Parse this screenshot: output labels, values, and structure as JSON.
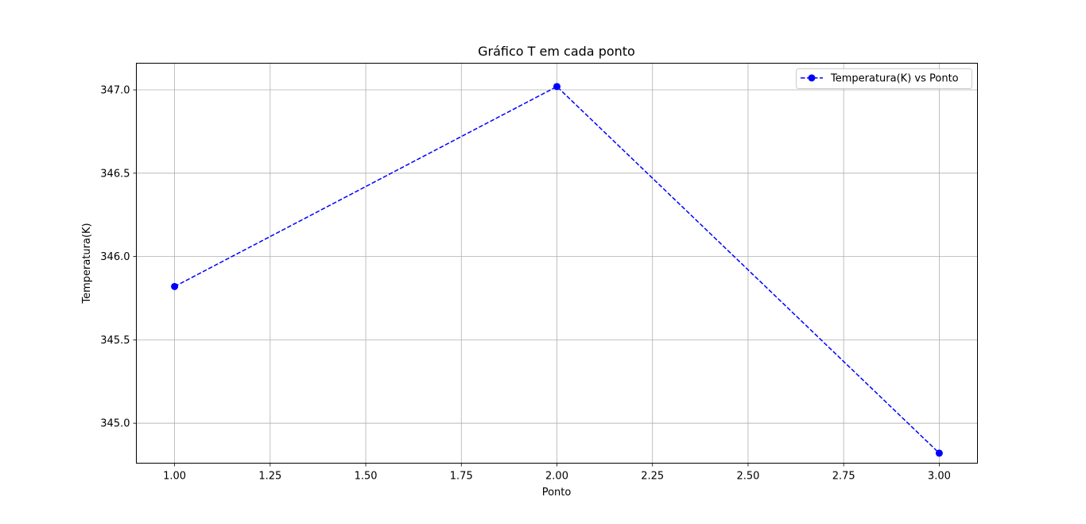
{
  "chart_data": {
    "type": "line",
    "title": "Gráfico T em cada ponto",
    "xlabel": "Ponto",
    "ylabel": "Temperatura(K)",
    "xlim": [
      0.9,
      3.1
    ],
    "ylim": [
      344.76,
      347.16
    ],
    "grid": true,
    "legend_placement": "top-right",
    "x_ticks": [
      "1.00",
      "1.25",
      "1.50",
      "1.75",
      "2.00",
      "2.25",
      "2.50",
      "2.75",
      "3.00"
    ],
    "y_ticks": [
      "345.0",
      "345.5",
      "346.0",
      "346.5",
      "347.0"
    ],
    "series": [
      {
        "name": "Temperatura(K) vs Ponto",
        "color": "#0000ff",
        "line_style": "dashed",
        "marker": "circle",
        "x": [
          1,
          2,
          3
        ],
        "y": [
          345.82,
          347.02,
          344.82
        ]
      }
    ]
  }
}
